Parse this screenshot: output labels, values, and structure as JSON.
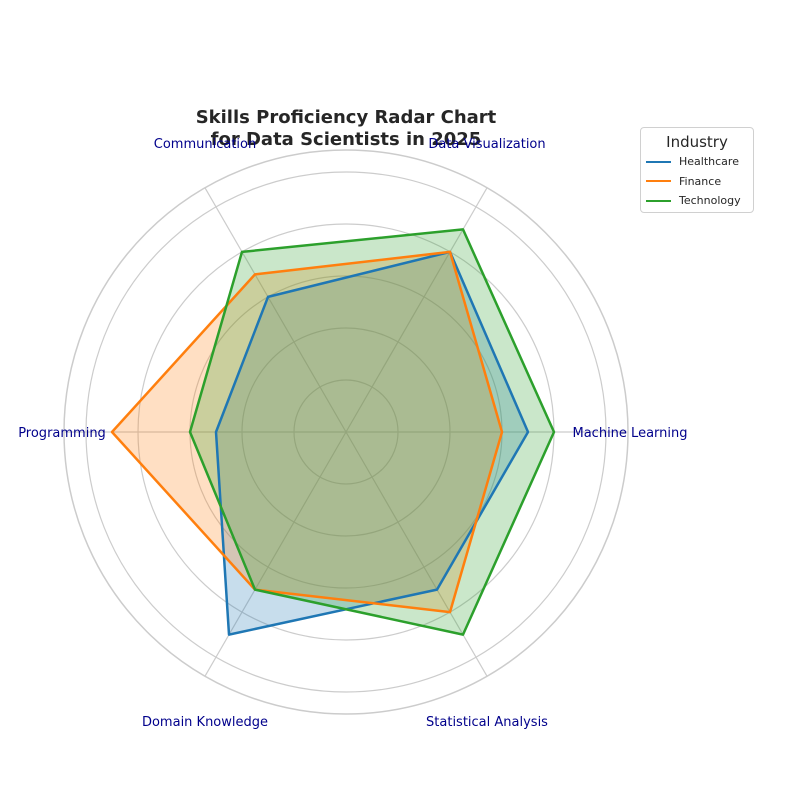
{
  "chart_data": {
    "type": "radar",
    "title_lines": [
      "Skills Proficiency Radar Chart",
      "for Data Scientists in 2025"
    ],
    "axes": [
      "Machine Learning",
      "Data Visualization",
      "Communication",
      "Programming",
      "Domain Knowledge",
      "Statistical Analysis"
    ],
    "r_max": 10,
    "grid_levels": [
      2,
      4,
      6,
      8,
      10
    ],
    "grid": true,
    "legend": {
      "title": "Industry",
      "placement": "top-right"
    },
    "series": [
      {
        "name": "Healthcare",
        "color": "#1f77b4",
        "values": [
          7,
          8,
          6,
          5,
          9,
          7
        ]
      },
      {
        "name": "Finance",
        "color": "#ff7f0e",
        "values": [
          6,
          8,
          7,
          9,
          7,
          8
        ]
      },
      {
        "name": "Technology",
        "color": "#2ca02c",
        "values": [
          8,
          9,
          8,
          6,
          7,
          9
        ]
      }
    ]
  }
}
